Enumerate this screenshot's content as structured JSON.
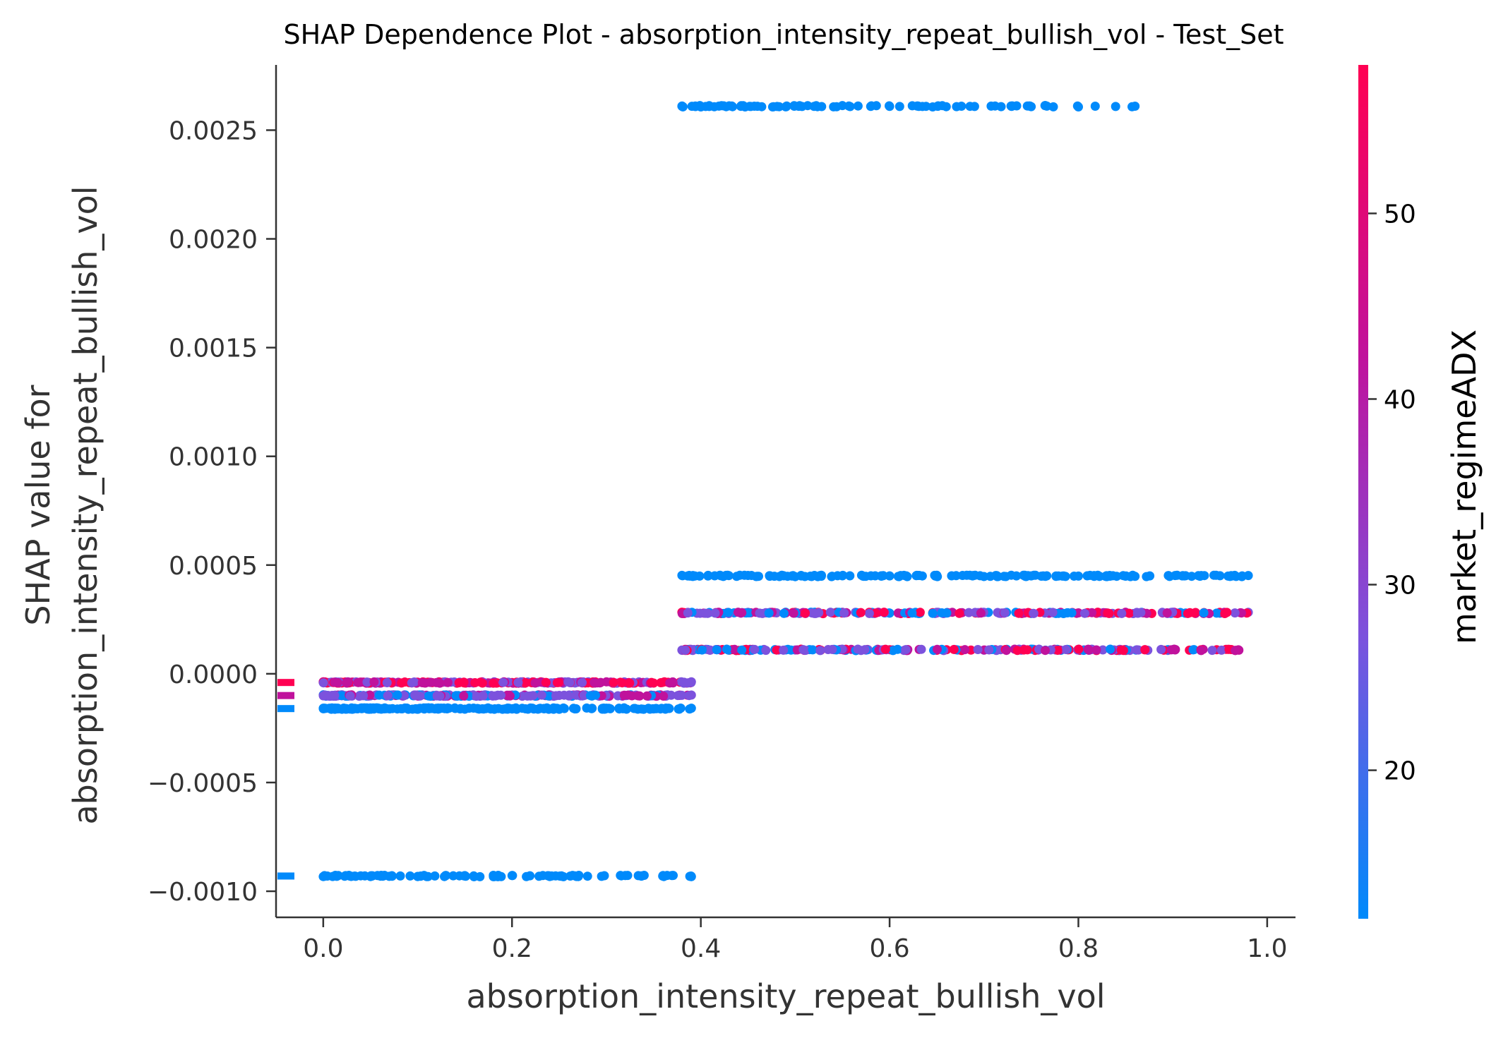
{
  "chart_data": {
    "type": "scatter",
    "title": "SHAP Dependence Plot - absorption_intensity_repeat_bullish_vol - Test_Set",
    "xlabel": "absorption_intensity_repeat_bullish_vol",
    "ylabel_line1": "SHAP value for",
    "ylabel_line2": "absorption_intensity_repeat_bullish_vol",
    "colorbar_label": "market_regimeADX",
    "xlim": [
      -0.05,
      1.03
    ],
    "ylim": [
      -0.00112,
      0.0028
    ],
    "x_ticks": [
      0.0,
      0.2,
      0.4,
      0.6,
      0.8,
      1.0
    ],
    "x_tick_labels": [
      "0.0",
      "0.2",
      "0.4",
      "0.6",
      "0.8",
      "1.0"
    ],
    "y_ticks": [
      0.0025,
      0.002,
      0.0015,
      0.001,
      0.0005,
      0.0,
      -0.0005,
      -0.001
    ],
    "y_tick_labels": [
      "0.0025",
      "0.0020",
      "0.0015",
      "0.0010",
      "0.0005",
      "0.0000",
      "−0.0005",
      "−0.0010"
    ],
    "colorbar_range": [
      12,
      58
    ],
    "colorbar_ticks": [
      20,
      30,
      40,
      50
    ],
    "colorbar_tick_labels": [
      "20",
      "30",
      "40",
      "50"
    ],
    "colormap": [
      "#008afb",
      "#7c52dd",
      "#c0129c",
      "#ff0052"
    ],
    "grid": false,
    "series": [
      {
        "y": 0.00261,
        "x_min": 0.38,
        "x_max": 0.86,
        "color_mode": "low",
        "count": 80,
        "sample_x": [
          0.38,
          0.4,
          0.43,
          0.46,
          0.49,
          0.52,
          0.55,
          0.58,
          0.6,
          0.63,
          0.66,
          0.69,
          0.73,
          0.75,
          0.8,
          0.86
        ]
      },
      {
        "y": 0.00045,
        "x_min": 0.38,
        "x_max": 0.98,
        "color_mode": "low",
        "count": 160,
        "sample_x": [
          0.38,
          0.45,
          0.5,
          0.55,
          0.6,
          0.65,
          0.7,
          0.75,
          0.8,
          0.83,
          0.86,
          0.92,
          0.95,
          0.98
        ]
      },
      {
        "y": 0.00028,
        "x_min": 0.38,
        "x_max": 0.98,
        "color_mode": "mixed",
        "count": 230,
        "sample_x": [
          0.38,
          0.45,
          0.5,
          0.55,
          0.6,
          0.65,
          0.7,
          0.75,
          0.8,
          0.85,
          0.9,
          0.95,
          0.98
        ]
      },
      {
        "y": 0.00011,
        "x_min": 0.38,
        "x_max": 0.97,
        "color_mode": "mixed",
        "count": 230,
        "sample_x": [
          0.38,
          0.45,
          0.5,
          0.55,
          0.6,
          0.65,
          0.7,
          0.75,
          0.8,
          0.85,
          0.9,
          0.97
        ]
      },
      {
        "y": -4e-05,
        "x_min": 0.0,
        "x_max": 0.39,
        "color_mode": "high",
        "count": 240,
        "sample_x": [
          0.0,
          0.05,
          0.1,
          0.15,
          0.2,
          0.25,
          0.3,
          0.35,
          0.39
        ]
      },
      {
        "y": -0.0001,
        "x_min": 0.0,
        "x_max": 0.39,
        "color_mode": "mid",
        "count": 240,
        "sample_x": [
          0.0,
          0.05,
          0.1,
          0.15,
          0.2,
          0.25,
          0.3,
          0.35,
          0.39
        ]
      },
      {
        "y": -0.00016,
        "x_min": 0.0,
        "x_max": 0.39,
        "color_mode": "low",
        "count": 200,
        "sample_x": [
          0.0,
          0.05,
          0.1,
          0.15,
          0.2,
          0.25,
          0.3,
          0.35,
          0.39
        ]
      },
      {
        "y": -0.00093,
        "x_min": 0.0,
        "x_max": 0.39,
        "color_mode": "low",
        "count": 90,
        "sample_x": [
          0.0,
          0.01,
          0.05,
          0.07,
          0.1,
          0.13,
          0.16,
          0.2,
          0.24,
          0.28,
          0.32,
          0.36,
          0.39
        ]
      }
    ],
    "nan_markers": [
      {
        "y": -4e-05,
        "color_mode": "high"
      },
      {
        "y": -0.0001,
        "color_mode": "mid"
      },
      {
        "y": -0.00016,
        "color_mode": "low"
      },
      {
        "y": -0.00093,
        "color_mode": "low"
      }
    ]
  }
}
